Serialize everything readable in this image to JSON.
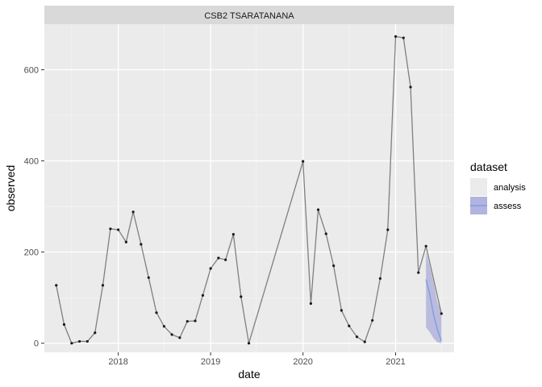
{
  "chart_data": {
    "type": "line",
    "facet_label": "CSB2 TSARATANANA",
    "xlabel": "date",
    "ylabel": "observed",
    "x_ticks": [
      "2018",
      "2019",
      "2020",
      "2021"
    ],
    "y_ticks": [
      0,
      200,
      400,
      600
    ],
    "ylim": [
      -20,
      700
    ],
    "xlim": [
      "2017-03-15",
      "2021-08-20"
    ],
    "grid": true,
    "legend": {
      "title": "dataset",
      "position": "right",
      "entries": [
        {
          "label": "analysis",
          "style": "fill",
          "fill": "#ebebeb"
        },
        {
          "label": "assess",
          "style": "band-line",
          "fill": "#a6a6d9",
          "line": "#7b9fe0"
        }
      ]
    },
    "series": [
      {
        "name": "observed",
        "color": "#7f7f7f",
        "point_color": "#1a1a1a",
        "points": [
          [
            "2017-05-01",
            127
          ],
          [
            "2017-06-01",
            41
          ],
          [
            "2017-07-01",
            0
          ],
          [
            "2017-08-01",
            4
          ],
          [
            "2017-09-01",
            4
          ],
          [
            "2017-10-01",
            23
          ],
          [
            "2017-11-01",
            127
          ],
          [
            "2017-12-01",
            251
          ],
          [
            "2018-01-01",
            249
          ],
          [
            "2018-02-01",
            222
          ],
          [
            "2018-03-01",
            288
          ],
          [
            "2018-04-01",
            217
          ],
          [
            "2018-05-01",
            144
          ],
          [
            "2018-06-01",
            67
          ],
          [
            "2018-07-01",
            37
          ],
          [
            "2018-08-01",
            19
          ],
          [
            "2018-09-01",
            12
          ],
          [
            "2018-10-01",
            48
          ],
          [
            "2018-11-01",
            49
          ],
          [
            "2018-12-01",
            105
          ],
          [
            "2019-01-01",
            164
          ],
          [
            "2019-02-01",
            187
          ],
          [
            "2019-03-01",
            183
          ],
          [
            "2019-04-01",
            239
          ],
          [
            "2019-05-01",
            102
          ],
          [
            "2019-06-01",
            0
          ],
          [
            "2020-01-01",
            399
          ],
          [
            "2020-02-01",
            87
          ],
          [
            "2020-03-01",
            293
          ],
          [
            "2020-04-01",
            240
          ],
          [
            "2020-05-01",
            170
          ],
          [
            "2020-06-01",
            72
          ],
          [
            "2020-07-01",
            38
          ],
          [
            "2020-08-01",
            14
          ],
          [
            "2020-09-01",
            3
          ],
          [
            "2020-10-01",
            50
          ],
          [
            "2020-11-01",
            142
          ],
          [
            "2020-12-01",
            249
          ],
          [
            "2021-01-01",
            673
          ],
          [
            "2021-02-01",
            670
          ],
          [
            "2021-03-01",
            562
          ],
          [
            "2021-04-01",
            155
          ],
          [
            "2021-05-01",
            213
          ],
          [
            "2021-07-01",
            65
          ]
        ]
      },
      {
        "name": "assess",
        "color": "#7b9fe0",
        "band_fill": "#a6a6d9",
        "points": [
          [
            "2021-05-01",
            140
          ],
          [
            "2021-05-15",
            110
          ],
          [
            "2021-06-01",
            60
          ],
          [
            "2021-06-15",
            30
          ],
          [
            "2021-07-01",
            5
          ]
        ],
        "lower": [
          35,
          25,
          10,
          2,
          0
        ],
        "upper": [
          200,
          170,
          130,
          90,
          70
        ]
      }
    ]
  }
}
